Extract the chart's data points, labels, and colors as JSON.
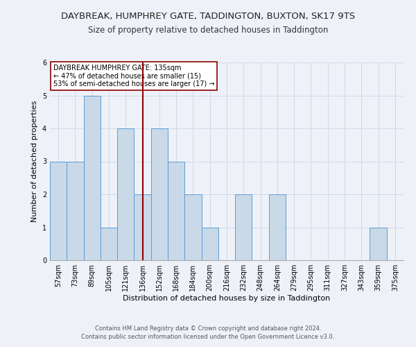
{
  "title": "DAYBREAK, HUMPHREY GATE, TADDINGTON, BUXTON, SK17 9TS",
  "subtitle": "Size of property relative to detached houses in Taddington",
  "xlabel": "Distribution of detached houses by size in Taddington",
  "ylabel": "Number of detached properties",
  "categories": [
    "57sqm",
    "73sqm",
    "89sqm",
    "105sqm",
    "121sqm",
    "136sqm",
    "152sqm",
    "168sqm",
    "184sqm",
    "200sqm",
    "216sqm",
    "232sqm",
    "248sqm",
    "264sqm",
    "279sqm",
    "295sqm",
    "311sqm",
    "327sqm",
    "343sqm",
    "359sqm",
    "375sqm"
  ],
  "values": [
    3,
    3,
    5,
    1,
    4,
    2,
    4,
    3,
    2,
    1,
    0,
    2,
    0,
    2,
    0,
    0,
    0,
    0,
    0,
    1,
    0
  ],
  "bar_color": "#c9d9e8",
  "bar_edge_color": "#5b9bd5",
  "marker_index": 5,
  "marker_color": "#8b0000",
  "marker_label": "DAYBREAK HUMPHREY GATE: 135sqm",
  "annotation_line1": "← 47% of detached houses are smaller (15)",
  "annotation_line2": "53% of semi-detached houses are larger (17) →",
  "annotation_box_color": "#ffffff",
  "annotation_box_edge": "#8b0000",
  "ylim": [
    0,
    6
  ],
  "yticks": [
    0,
    1,
    2,
    3,
    4,
    5,
    6
  ],
  "grid_color": "#d0d8e8",
  "footer1": "Contains HM Land Registry data © Crown copyright and database right 2024.",
  "footer2": "Contains public sector information licensed under the Open Government Licence v3.0.",
  "background_color": "#eef2f8",
  "title_fontsize": 9.5,
  "subtitle_fontsize": 8.5,
  "ylabel_fontsize": 8,
  "xlabel_fontsize": 8,
  "tick_fontsize": 7,
  "annotation_fontsize": 7,
  "footer_fontsize": 6
}
